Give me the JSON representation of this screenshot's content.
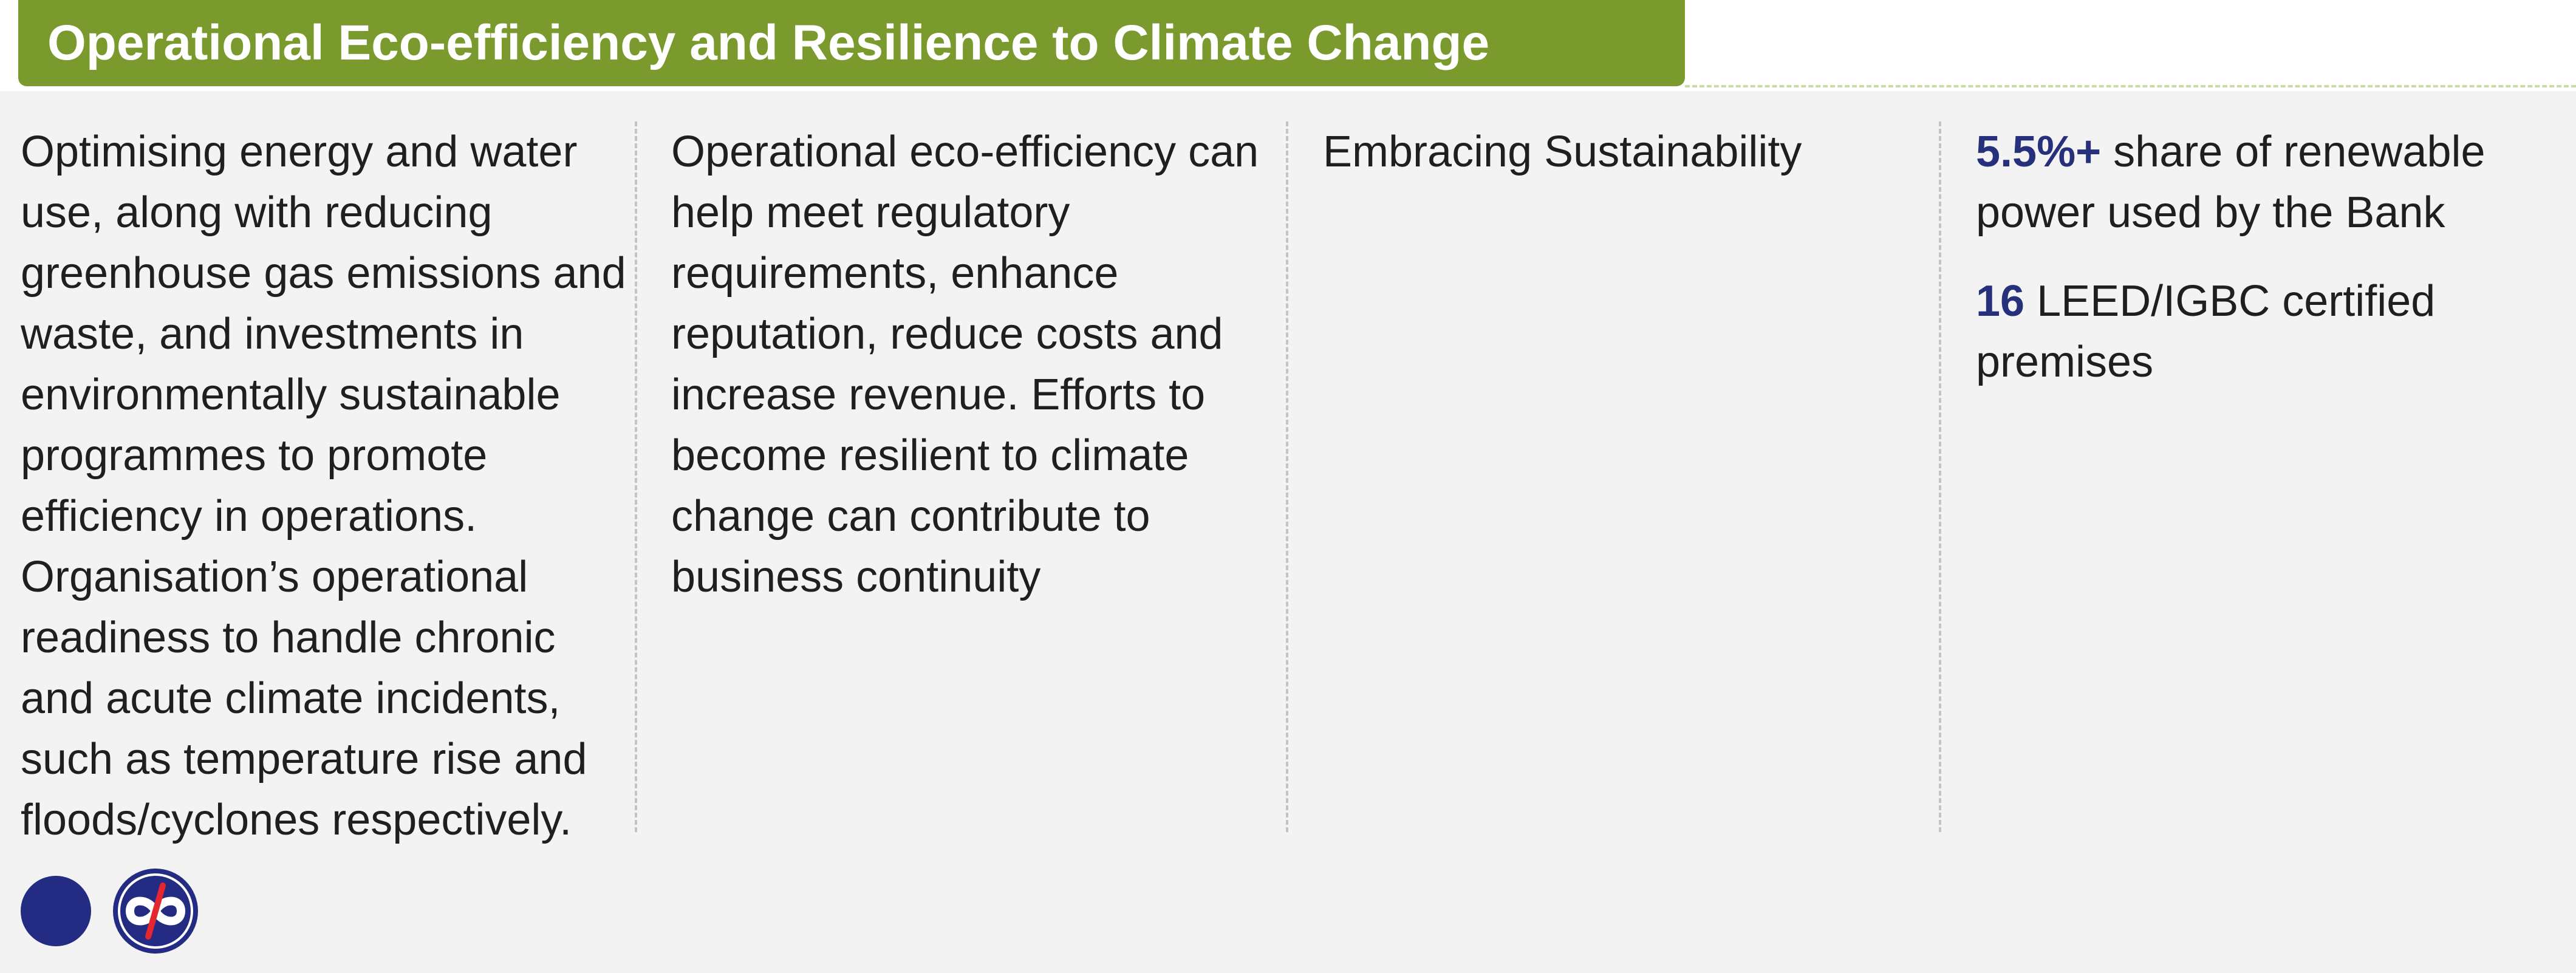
{
  "header": {
    "title": "Operational Eco-efficiency and Resilience to Climate Change"
  },
  "columns": {
    "description": "Optimising energy and water use, along with reducing greenhouse gas emissions and waste, and investments in environmentally sustainable programmes to promote efficiency in operations. Organisation’s operational readiness to handle chronic and acute climate incidents, such as temperature rise and floods/cyclones respectively.",
    "impact": "Operational eco-efficiency can help meet regulatory requirements, enhance reputation, reduce costs and increase revenue. Efforts to become resilient to climate change can contribute to business continuity",
    "initiative": "Embracing Sustainability",
    "metrics": [
      {
        "value": "5.5%+",
        "label": " share of renewable power used by the Bank"
      },
      {
        "value": "16",
        "label": " LEED/IGBC certified premises"
      }
    ]
  },
  "colors": {
    "header_bg": "#7a9a2e",
    "accent": "#27307a",
    "panel_bg": "#f3f3f3",
    "logo_blue": "#232b83",
    "logo_red": "#e3262f"
  },
  "icons": {
    "logo_1": "blue-circle-logo",
    "logo_2": "kotak-logo"
  }
}
